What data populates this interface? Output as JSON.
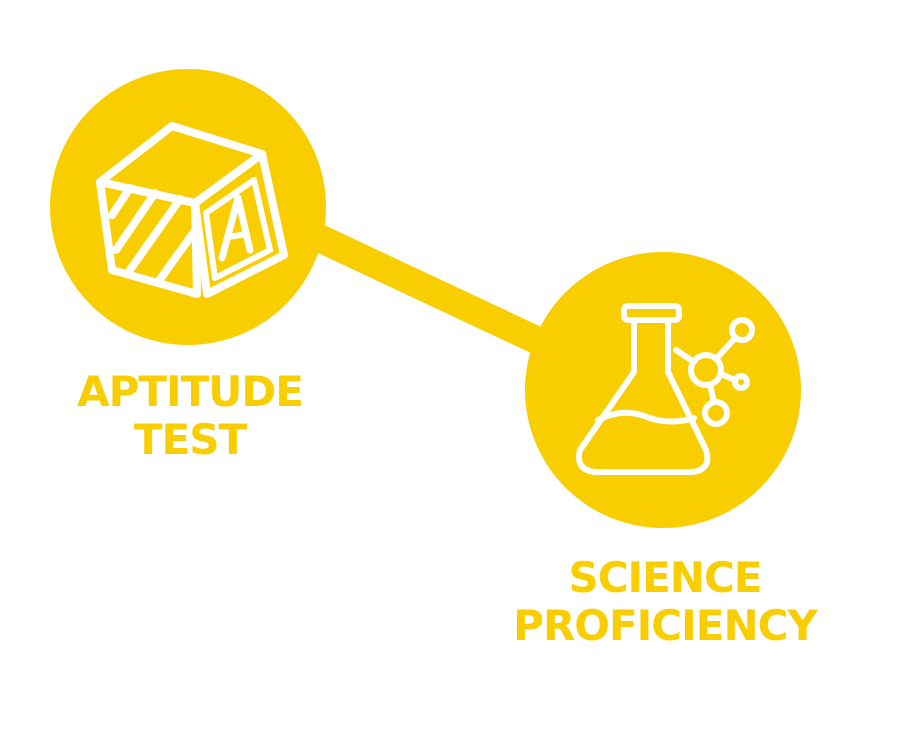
{
  "colors": {
    "accent": "#F8CE00",
    "icon": "#FFFFFF",
    "background": "#FFFFFF"
  },
  "nodes": [
    {
      "icon": "alphabet-block-icon",
      "label_lines": [
        "APTITUDE",
        "TEST"
      ]
    },
    {
      "icon": "chemistry-flask-icon",
      "label_lines": [
        "SCIENCE",
        "PROFICIENCY"
      ]
    }
  ]
}
